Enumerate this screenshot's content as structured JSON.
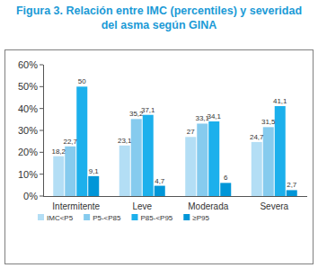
{
  "chart_data": {
    "type": "bar",
    "title": "Figura 3. Relación entre IMC (percentiles) y severidad del asma según GINA",
    "categories": [
      "Intermitente",
      "Leve",
      "Moderada",
      "Severa"
    ],
    "series": [
      {
        "name": "IMC<P5",
        "color": "#b3def5",
        "values": [
          18.2,
          23.1,
          27,
          24.7
        ],
        "value_labels": [
          "18,2",
          "23,1",
          "27",
          "24,7"
        ]
      },
      {
        "name": "P5-<P85",
        "color": "#86cbee",
        "values": [
          22.7,
          35.2,
          33.1,
          31.5
        ],
        "value_labels": [
          "22,7",
          "35,2",
          "33,1",
          "31,5"
        ]
      },
      {
        "name": "P85-<P95",
        "color": "#1cb0ec",
        "values": [
          50,
          37.1,
          34.1,
          41.1
        ],
        "value_labels": [
          "50",
          "37,1",
          "34,1",
          "41,1"
        ]
      },
      {
        "name": "≥P95",
        "color": "#0096d8",
        "values": [
          9.1,
          4.7,
          6,
          2.7
        ],
        "value_labels": [
          "9,1",
          "4,7",
          "6",
          "2,7"
        ]
      }
    ],
    "ylim": [
      0,
      60
    ],
    "yticks": [
      {
        "value": 0,
        "label": "0%"
      },
      {
        "value": 10,
        "label": "10%"
      },
      {
        "value": 20,
        "label": "20%"
      },
      {
        "value": 30,
        "label": "30%"
      },
      {
        "value": 40,
        "label": "40%"
      },
      {
        "value": 50,
        "label": "50%"
      },
      {
        "value": 60,
        "label": "60%"
      }
    ],
    "grid": false,
    "legend": "bottom",
    "data_labels": true
  }
}
